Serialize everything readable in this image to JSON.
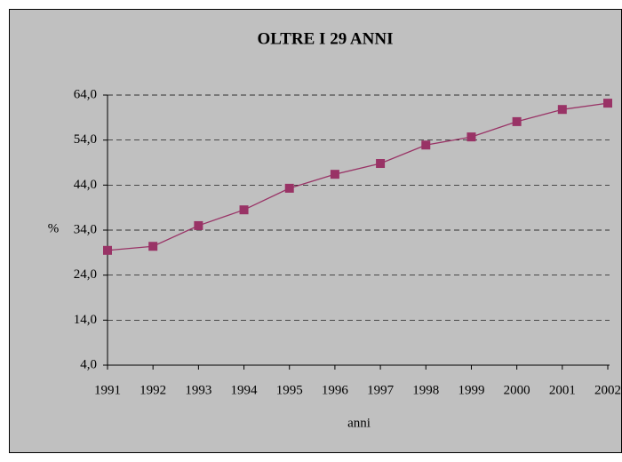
{
  "chart_data": {
    "type": "line",
    "title": "OLTRE I 29 ANNI",
    "x_label": "anni",
    "y_label": "%",
    "categories": [
      "1991",
      "1992",
      "1993",
      "1994",
      "1995",
      "1996",
      "1997",
      "1998",
      "1999",
      "2000",
      "2001",
      "2002"
    ],
    "series": [
      {
        "name": "OLTRE I 29 ANNI",
        "color": "#993366",
        "values": [
          29.5,
          30.4,
          35.0,
          38.5,
          43.3,
          46.4,
          48.8,
          52.9,
          54.7,
          58.1,
          60.8,
          62.2
        ]
      }
    ],
    "ylim": [
      4,
      64
    ],
    "yticks": [
      {
        "value": 4,
        "label": "4,0"
      },
      {
        "value": 14,
        "label": "14,0"
      },
      {
        "value": 24,
        "label": "24,0"
      },
      {
        "value": 34,
        "label": "34,0"
      },
      {
        "value": 44,
        "label": "44,0"
      },
      {
        "value": 54,
        "label": "54,0"
      },
      {
        "value": 64,
        "label": "64,0"
      }
    ],
    "grid": true
  }
}
